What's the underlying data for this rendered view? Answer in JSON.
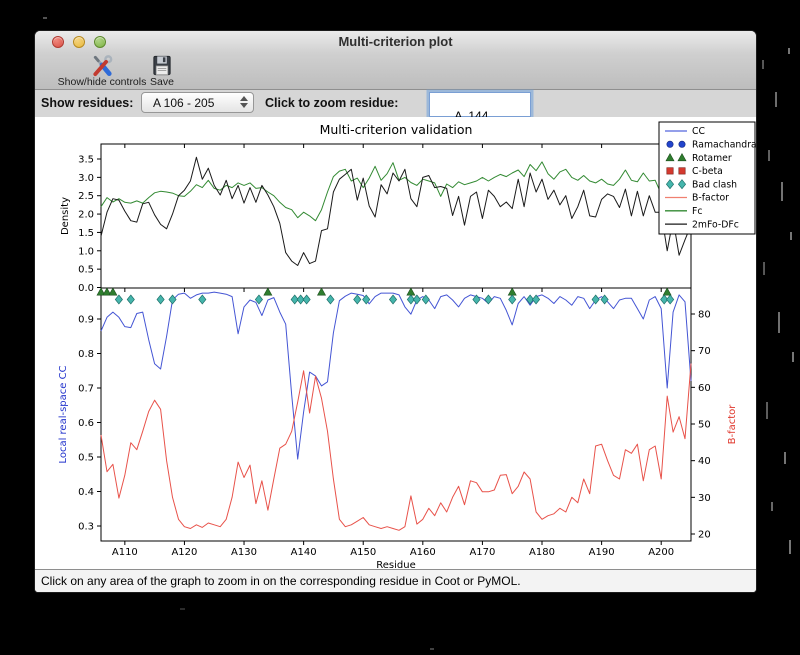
{
  "window": {
    "title": "Multi-criterion plot",
    "toolbar": {
      "buttons": [
        {
          "label": "Show/hide controls"
        },
        {
          "label": "Save"
        }
      ]
    },
    "controls": {
      "show_residues_label": "Show residues:",
      "show_residues_value": "A 106 - 205",
      "zoom_residue_label": "Click to zoom residue:",
      "zoom_residue_value": "A  144"
    },
    "status_text": "Click on any area of the graph to zoom in on the corresponding residue in Coot or PyMOL."
  },
  "chart_data": {
    "type": "line",
    "title": "Multi-criterion validation",
    "xlabel": "Residue",
    "x_start": 106,
    "x_end": 205,
    "x_tick_values": [
      110,
      120,
      130,
      140,
      150,
      160,
      170,
      180,
      190,
      200
    ],
    "x_tick_labels": [
      "A110",
      "A120",
      "A130",
      "A140",
      "A150",
      "A160",
      "A170",
      "A180",
      "A190",
      "A200"
    ],
    "top_plot": {
      "ylabel": "Density",
      "yticks": [
        0.0,
        0.5,
        1.0,
        1.5,
        2.0,
        2.5,
        3.0,
        3.5
      ],
      "ylim": [
        0.0,
        3.91
      ],
      "series": [
        {
          "name": "Fc",
          "color": "#338a33",
          "values": [
            2.2,
            2.45,
            2.33,
            2.42,
            2.32,
            2.3,
            2.36,
            2.3,
            2.45,
            2.58,
            2.62,
            2.6,
            2.57,
            2.5,
            2.48,
            2.62,
            2.8,
            2.72,
            2.92,
            2.7,
            2.65,
            2.78,
            2.72,
            2.85,
            2.78,
            2.85,
            2.7,
            2.72,
            2.6,
            2.5,
            2.32,
            2.18,
            2.12,
            1.9,
            2.05,
            1.95,
            1.82,
            2.12,
            2.6,
            3.02,
            3.17,
            3.22,
            2.9,
            2.98,
            2.72,
            2.98,
            3.3,
            2.92,
            3.1,
            3.4,
            2.92,
            3.0,
            2.86,
            2.78,
            2.95,
            2.9,
            2.85,
            2.48,
            2.82,
            2.72,
            2.88,
            2.8,
            2.85,
            2.9,
            3.0,
            2.9,
            3.0,
            3.08,
            3.02,
            3.12,
            3.2,
            3.02,
            3.35,
            3.18,
            3.42,
            3.1,
            2.95,
            3.15,
            3.22,
            3.0,
            2.92,
            3.05,
            2.9,
            2.85,
            2.95,
            2.82,
            2.78,
            2.95,
            3.2,
            2.92,
            2.88,
            3.12,
            2.9,
            2.92,
            2.55,
            2.22,
            2.65,
            2.4,
            2.9,
            2.35
          ]
        },
        {
          "name": "2mFo-DFc",
          "color": "#1a1a1a",
          "values": [
            1.4,
            2.05,
            2.42,
            2.38,
            2.08,
            1.82,
            1.78,
            2.28,
            2.32,
            1.98,
            1.72,
            1.6,
            2.0,
            2.5,
            2.65,
            2.9,
            3.55,
            2.95,
            3.25,
            2.78,
            2.52,
            2.92,
            2.42,
            2.78,
            2.3,
            2.72,
            2.32,
            2.78,
            2.52,
            2.2,
            1.75,
            0.95,
            0.72,
            0.6,
            0.95,
            0.65,
            0.72,
            1.55,
            1.6,
            2.6,
            2.95,
            3.08,
            3.22,
            2.38,
            2.98,
            2.22,
            1.92,
            2.8,
            2.55,
            3.12,
            2.9,
            3.22,
            2.42,
            2.2,
            3.0,
            3.05,
            2.72,
            2.75,
            2.7,
            1.96,
            2.48,
            1.7,
            2.48,
            2.6,
            1.88,
            2.65,
            2.48,
            2.2,
            2.33,
            2.15,
            2.95,
            2.2,
            3.12,
            2.6,
            2.95,
            2.4,
            2.65,
            2.25,
            2.5,
            1.88,
            2.2,
            2.65,
            1.95,
            1.92,
            2.4,
            2.55,
            2.48,
            2.18,
            2.68,
            1.95,
            2.62,
            1.95,
            2.5,
            2.05,
            2.05,
            1.0,
            1.85,
            0.88,
            1.3,
            1.7
          ]
        }
      ]
    },
    "bottom_plot": {
      "left_axis": {
        "ylabel": "Local real-space CC",
        "color": "#2233cc",
        "yticks": [
          0.3,
          0.4,
          0.5,
          0.6,
          0.7,
          0.8,
          0.9
        ],
        "ylim": [
          0.2565,
          0.99
        ]
      },
      "right_axis": {
        "ylabel": "B-factor",
        "color": "#e0392e",
        "yticks": [
          20,
          30,
          40,
          50,
          60,
          70,
          80
        ],
        "ylim": [
          18.1,
          87.1
        ]
      },
      "series": [
        {
          "name": "CC",
          "axis": "left",
          "color": "#4455d4",
          "values": [
            0.865,
            0.905,
            0.92,
            0.905,
            0.878,
            0.875,
            0.916,
            0.92,
            0.84,
            0.77,
            0.755,
            0.85,
            0.955,
            0.972,
            0.975,
            0.96,
            0.97,
            0.975,
            0.975,
            0.978,
            0.975,
            0.972,
            0.965,
            0.857,
            0.935,
            0.955,
            0.948,
            0.91,
            0.955,
            0.962,
            0.92,
            0.885,
            0.68,
            0.494,
            0.63,
            0.746,
            0.735,
            0.706,
            0.718,
            0.86,
            0.953,
            0.966,
            0.975,
            0.972,
            0.968,
            0.944,
            0.965,
            0.975,
            0.975,
            0.975,
            0.97,
            0.935,
            0.914,
            0.955,
            0.965,
            0.955,
            0.93,
            0.965,
            0.97,
            0.955,
            0.935,
            0.96,
            0.97,
            0.965,
            0.96,
            0.945,
            0.965,
            0.96,
            0.925,
            0.883,
            0.945,
            0.965,
            0.94,
            0.965,
            0.97,
            0.96,
            0.945,
            0.965,
            0.955,
            0.94,
            0.965,
            0.96,
            0.93,
            0.955,
            0.965,
            0.95,
            0.93,
            0.955,
            0.96,
            0.96,
            0.93,
            0.9,
            0.955,
            0.965,
            0.93,
            0.7,
            0.92,
            0.97,
            0.95,
            0.72
          ]
        },
        {
          "name": "B-factor",
          "axis": "right",
          "color": "#e8524a",
          "values": [
            47.0,
            37.0,
            39.0,
            29.8,
            36.0,
            44.9,
            43.0,
            48.0,
            53.4,
            56.5,
            54.0,
            40.0,
            30.0,
            24.0,
            22.0,
            21.5,
            22.5,
            21.8,
            23.0,
            22.5,
            22.0,
            24.0,
            30.0,
            39.6,
            35.4,
            38.8,
            28.3,
            34.5,
            26.5,
            35.0,
            43.4,
            44.5,
            48.0,
            56.0,
            64.5,
            53.0,
            63.0,
            57.0,
            48.0,
            35.0,
            24.0,
            22.0,
            22.5,
            23.5,
            24.5,
            22.5,
            22.0,
            21.5,
            22.0,
            21.5,
            21.0,
            22.0,
            30.4,
            22.7,
            24.0,
            27.0,
            25.0,
            28.5,
            26.0,
            30.0,
            33.0,
            28.0,
            34.5,
            34.0,
            31.5,
            31.5,
            32.0,
            36.0,
            36.2,
            31.0,
            33.0,
            36.9,
            35.0,
            26.0,
            24.0,
            25.0,
            25.5,
            27.0,
            26.0,
            30.0,
            28.5,
            35.0,
            31.0,
            44.0,
            44.5,
            40.0,
            36.0,
            35.0,
            43.0,
            42.0,
            44.5,
            34.5,
            43.0,
            44.0,
            35.0,
            57.6,
            47.8,
            52.0,
            46.0,
            66.5
          ]
        }
      ],
      "markers": {
        "rotamer": {
          "color": "#2e7d2e",
          "residues": [
            106,
            107,
            108,
            134,
            143,
            158,
            175,
            201
          ]
        },
        "bad_clash": {
          "color": "#45b5ac",
          "residues": [
            109,
            111,
            116,
            118,
            123,
            132.5,
            138.5,
            139.5,
            140.5,
            144.5,
            149,
            150.5,
            155,
            158,
            159,
            160.5,
            169,
            171,
            175,
            178,
            179,
            189,
            190.5,
            200.5,
            201.5
          ]
        }
      }
    },
    "legend": [
      {
        "label": "CC",
        "type": "line",
        "color": "#5566dd"
      },
      {
        "label": "Ramachandran",
        "type": "circle",
        "color": "#2244cc"
      },
      {
        "label": "Rotamer",
        "type": "triangle",
        "color": "#2e7d2e"
      },
      {
        "label": "C-beta",
        "type": "square",
        "color": "#d43a2f"
      },
      {
        "label": "Bad clash",
        "type": "diamond",
        "color": "#45b5ac"
      },
      {
        "label": "B-factor",
        "type": "line",
        "color": "#f08070"
      },
      {
        "label": "Fc",
        "type": "line",
        "color": "#338a33"
      },
      {
        "label": "2mFo-DFc",
        "type": "line",
        "color": "#1a1a1a"
      }
    ],
    "legend_position": "upper right",
    "grid": false
  }
}
